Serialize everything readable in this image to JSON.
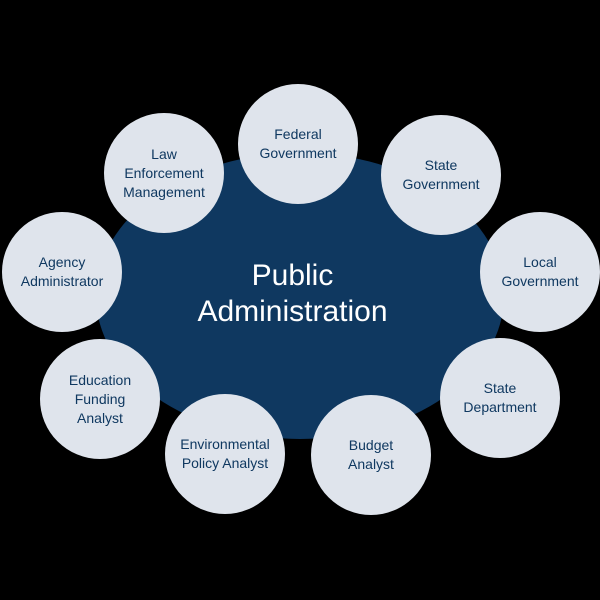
{
  "colors": {
    "background": "#000000",
    "center_fill": "#0f3860",
    "center_text": "#ffffff",
    "node_fill": "#dfe4ec",
    "node_text": "#0f3860"
  },
  "center": {
    "title": "Public\nAdministration"
  },
  "nodes": [
    {
      "label": "Federal\nGovernment"
    },
    {
      "label": "State\nGovernment"
    },
    {
      "label": "Local\nGovernment"
    },
    {
      "label": "State\nDepartment"
    },
    {
      "label": "Budget\nAnalyst"
    },
    {
      "label": "Environmental\nPolicy Analyst"
    },
    {
      "label": "Education\nFunding\nAnalyst"
    },
    {
      "label": "Agency\nAdministrator"
    },
    {
      "label": "Law\nEnforcement\nManagement"
    }
  ]
}
